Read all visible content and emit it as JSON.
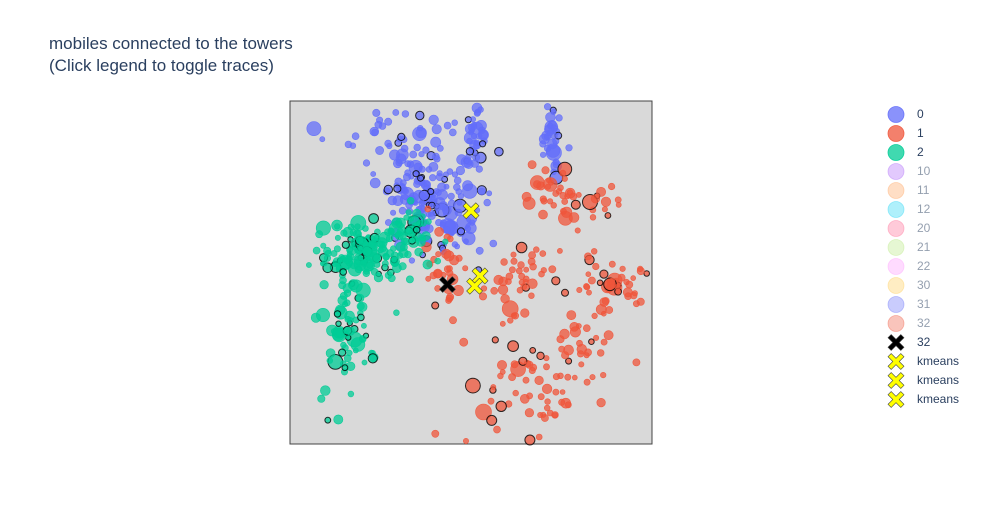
{
  "title": {
    "line1": "mobiles connected to the towers",
    "line2": "(Click legend to toggle traces)"
  },
  "chart_data": {
    "type": "scatter",
    "title": "mobiles connected to the towers (Click legend to toggle traces)",
    "xlim": [
      0,
      100
    ],
    "ylim": [
      0,
      100
    ],
    "plot_background": "#d9d9d9",
    "axes_visible": false,
    "grid": false,
    "legend_placement": "right",
    "series": [
      {
        "name": "0",
        "color": "#636efa",
        "visible": true,
        "symbol": "circle",
        "clusters": [
          {
            "cx": 38,
            "cy": 73,
            "sx": 7,
            "sy": 6,
            "n": 150
          },
          {
            "cx": 51,
            "cy": 89,
            "sx": 1.8,
            "sy": 5,
            "n": 35
          },
          {
            "cx": 73,
            "cy": 90,
            "sx": 1.5,
            "sy": 5,
            "n": 32
          },
          {
            "cx": 28,
            "cy": 90,
            "sx": 8,
            "sy": 4,
            "n": 35
          },
          {
            "cx": 45,
            "cy": 60,
            "sx": 6,
            "sy": 4,
            "n": 28
          }
        ]
      },
      {
        "name": "1",
        "color": "#ef553b",
        "visible": true,
        "symbol": "circle",
        "clusters": [
          {
            "cx": 77,
            "cy": 72,
            "sx": 7,
            "sy": 5,
            "n": 48
          },
          {
            "cx": 88,
            "cy": 45,
            "sx": 7,
            "sy": 4,
            "n": 48
          },
          {
            "cx": 63,
            "cy": 48,
            "sx": 5,
            "sy": 5,
            "n": 40
          },
          {
            "cx": 70,
            "cy": 15,
            "sx": 9,
            "sy": 8,
            "n": 60
          },
          {
            "cx": 43,
            "cy": 52,
            "sx": 3,
            "sy": 6,
            "n": 30
          },
          {
            "cx": 80,
            "cy": 28,
            "sx": 6,
            "sy": 6,
            "n": 25
          }
        ]
      },
      {
        "name": "2",
        "color": "#00cc96",
        "visible": true,
        "symbol": "circle",
        "clusters": [
          {
            "cx": 20,
            "cy": 56,
            "sx": 7,
            "sy": 4,
            "n": 140
          },
          {
            "cx": 16,
            "cy": 31,
            "sx": 3.5,
            "sy": 9,
            "n": 70
          },
          {
            "cx": 33,
            "cy": 63,
            "sx": 3,
            "sy": 4,
            "n": 40
          }
        ]
      },
      {
        "name": "10",
        "color": "#ab63fa",
        "visible": false,
        "symbol": "circle"
      },
      {
        "name": "11",
        "color": "#ffa15a",
        "visible": false,
        "symbol": "circle"
      },
      {
        "name": "12",
        "color": "#19d3f3",
        "visible": false,
        "symbol": "circle"
      },
      {
        "name": "20",
        "color": "#ff6692",
        "visible": false,
        "symbol": "circle"
      },
      {
        "name": "21",
        "color": "#b6e880",
        "visible": false,
        "symbol": "circle"
      },
      {
        "name": "22",
        "color": "#ff97ff",
        "visible": false,
        "symbol": "circle"
      },
      {
        "name": "30",
        "color": "#fecb52",
        "visible": false,
        "symbol": "circle"
      },
      {
        "name": "31",
        "color": "#636efa",
        "visible": false,
        "symbol": "circle"
      },
      {
        "name": "32",
        "color": "#ef553b",
        "visible": false,
        "symbol": "circle"
      },
      {
        "name": "32",
        "color": "#000000",
        "visible": true,
        "symbol": "x",
        "points": [
          {
            "x": 43.5,
            "y": 46.5
          }
        ]
      },
      {
        "name": "kmeans",
        "color": "#ffff00",
        "visible": true,
        "symbol": "x",
        "points": [
          {
            "x": 50,
            "y": 68
          }
        ]
      },
      {
        "name": "kmeans",
        "color": "#ffff00",
        "visible": true,
        "symbol": "x",
        "points": [
          {
            "x": 52.5,
            "y": 49
          }
        ]
      },
      {
        "name": "kmeans",
        "color": "#ffff00",
        "visible": true,
        "symbol": "x",
        "points": [
          {
            "x": 51,
            "y": 46
          }
        ]
      }
    ]
  }
}
